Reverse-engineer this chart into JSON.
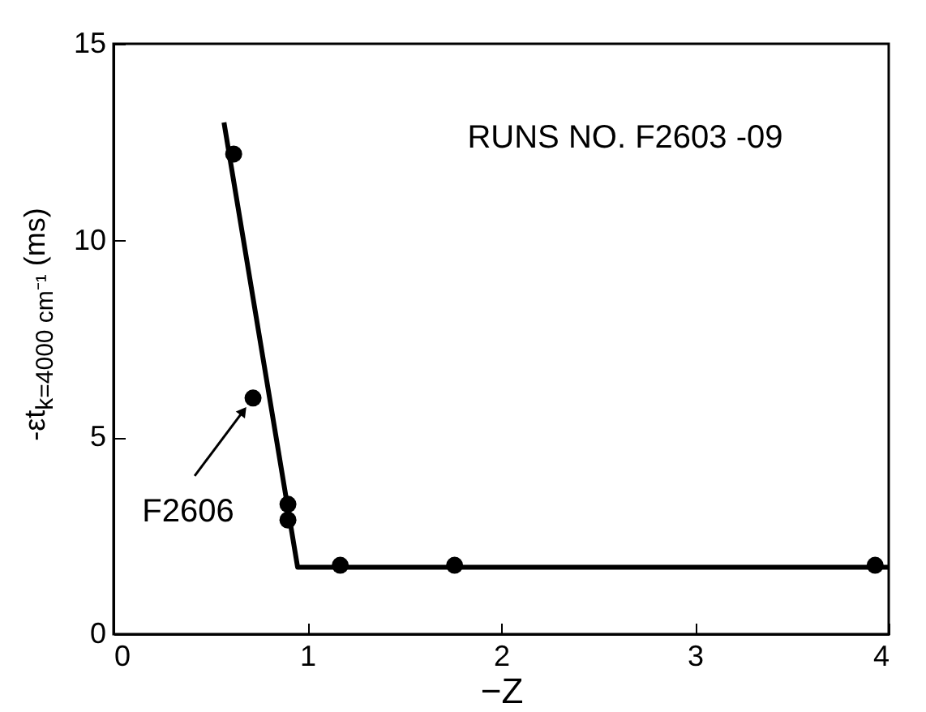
{
  "chart_data": {
    "type": "scatter",
    "xlabel": "−Z",
    "ylabel": "-εt$_{k=4000 cm⁻¹}$ (ms)",
    "xlim": [
      0,
      4
    ],
    "xticks": [
      0,
      1,
      2,
      3,
      4
    ],
    "ylim": [
      0,
      15
    ],
    "yticks": [
      0,
      5,
      10,
      15
    ],
    "grid": false,
    "marker": "circle",
    "line_style": "solid",
    "series": [
      {
        "color": "#000000",
        "x": [
          0.62,
          0.72,
          0.9,
          0.9,
          1.17,
          1.76,
          3.93
        ],
        "values": [
          12.2,
          6.0,
          3.3,
          2.9,
          1.75,
          1.75,
          1.75
        ]
      },
      {
        "type": "line",
        "marker": "none",
        "color": "#000000",
        "x": [
          0.57,
          0.95,
          4.0
        ],
        "values": [
          13.0,
          1.7,
          1.7
        ]
      }
    ],
    "annotations": [
      "RUNS NO. F2603 -09",
      {
        "text": "F2606",
        "x": 0.72,
        "y": 6.0
      }
    ]
  }
}
